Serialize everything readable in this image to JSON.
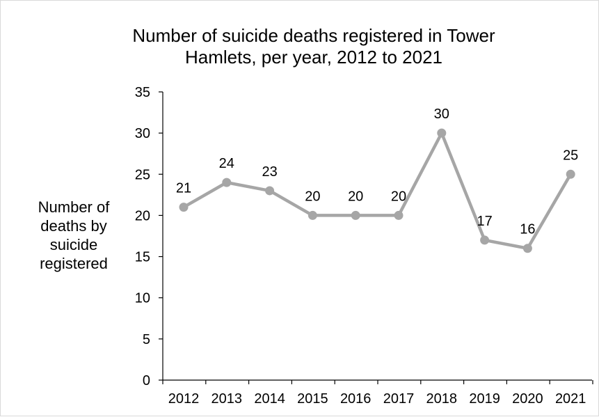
{
  "chart_data": {
    "type": "line",
    "title_lines": [
      "Number of suicide deaths registered in Tower",
      "Hamlets, per year, 2012 to 2021"
    ],
    "ylabel_lines": [
      "Number of",
      "deaths by",
      "suicide",
      "registered"
    ],
    "xlabel": "",
    "categories": [
      "2012",
      "2013",
      "2014",
      "2015",
      "2016",
      "2017",
      "2018",
      "2019",
      "2020",
      "2021"
    ],
    "series": [
      {
        "values": [
          21,
          24,
          23,
          20,
          20,
          20,
          30,
          17,
          16,
          25
        ]
      }
    ],
    "ylim": [
      0,
      35
    ],
    "yticks": [
      0,
      5,
      10,
      15,
      20,
      25,
      30,
      35
    ],
    "grid": false,
    "legend": "none",
    "line_color": "#a6a6a6",
    "axis_color": "#000000",
    "data_labels": true
  }
}
